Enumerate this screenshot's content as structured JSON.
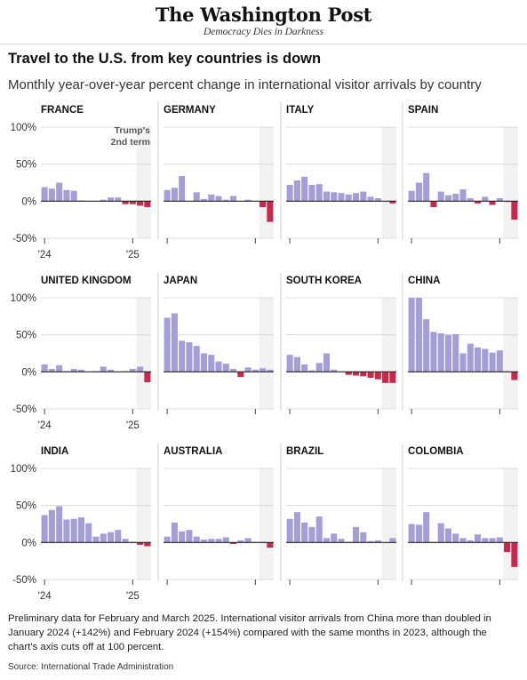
{
  "masthead": {
    "title": "The Washington Post",
    "tagline": "Democracy Dies in Darkness"
  },
  "headline": "Travel to the U.S. from key countries is down",
  "subhead": "Monthly year-over-year percent change in international visitor arrivals by country",
  "footnote": "Preliminary data for February and March 2025. International visitor arrivals from China more than doubled in January 2024 (+142%) and February 2024 (+154%) compared with the same months in 2023, although the chart's axis cuts off at 100 percent.",
  "source": "Source: International Trade Administration",
  "colors": {
    "positive": "#a49fd6",
    "negative": "#c8284c",
    "shade": "#f2f2f2",
    "baseline": "#222222",
    "grid": "#d4d4d4"
  },
  "chart_data": {
    "type": "bar",
    "months": [
      "Jan 2024",
      "Feb 2024",
      "Mar 2024",
      "Apr 2024",
      "May 2024",
      "Jun 2024",
      "Jul 2024",
      "Aug 2024",
      "Sep 2024",
      "Oct 2024",
      "Nov 2024",
      "Dec 2024",
      "Jan 2025",
      "Feb 2025",
      "Mar 2025"
    ],
    "ylim": [
      -50,
      100
    ],
    "y_ticks": [
      "100%",
      "50%",
      "0%",
      "-50%"
    ],
    "x_ticks": [
      "'24",
      "'25"
    ],
    "annotation": [
      "Trump's",
      "2nd term"
    ],
    "shaded_period": [
      "Feb 2025",
      "Mar 2025"
    ],
    "panels": [
      {
        "name": "FRANCE",
        "values": [
          19,
          17,
          25,
          15,
          14,
          1,
          0,
          0,
          2,
          5,
          5,
          -4,
          -4,
          -6,
          -8
        ]
      },
      {
        "name": "GERMANY",
        "values": [
          15,
          18,
          34,
          0,
          12,
          3,
          9,
          7,
          2,
          7,
          0,
          2,
          0,
          -8,
          -28
        ]
      },
      {
        "name": "ITALY",
        "values": [
          22,
          28,
          33,
          22,
          23,
          13,
          12,
          11,
          9,
          11,
          13,
          6,
          4,
          0,
          -3
        ]
      },
      {
        "name": "SPAIN",
        "values": [
          14,
          25,
          38,
          -8,
          13,
          8,
          10,
          16,
          4,
          -3,
          6,
          -5,
          4,
          -1,
          -25
        ]
      },
      {
        "name": "UNITED KINGDOM",
        "values": [
          10,
          4,
          9,
          1,
          4,
          3,
          0,
          1,
          7,
          3,
          0,
          1,
          4,
          7,
          -14
        ]
      },
      {
        "name": "JAPAN",
        "values": [
          73,
          79,
          42,
          40,
          35,
          25,
          23,
          14,
          11,
          4,
          -7,
          6,
          3,
          5,
          3
        ]
      },
      {
        "name": "SOUTH KOREA",
        "values": [
          23,
          20,
          10,
          2,
          12,
          25,
          3,
          0,
          -4,
          -5,
          -6,
          -8,
          -10,
          -15,
          -15
        ]
      },
      {
        "name": "CHINA",
        "values": [
          100,
          100,
          71,
          54,
          52,
          50,
          51,
          25,
          38,
          33,
          31,
          26,
          29,
          1,
          -11
        ]
      },
      {
        "name": "INDIA",
        "values": [
          37,
          44,
          49,
          31,
          32,
          34,
          26,
          8,
          12,
          14,
          17,
          5,
          1,
          -3,
          -5
        ]
      },
      {
        "name": "AUSTRALIA",
        "values": [
          8,
          27,
          15,
          17,
          8,
          4,
          5,
          5,
          7,
          -2,
          3,
          6,
          1,
          1,
          -7
        ]
      },
      {
        "name": "BRAZIL",
        "values": [
          32,
          41,
          27,
          21,
          35,
          6,
          12,
          5,
          1,
          21,
          14,
          2,
          3,
          0,
          6
        ]
      },
      {
        "name": "COLOMBIA",
        "values": [
          25,
          24,
          41,
          1,
          26,
          19,
          12,
          6,
          3,
          11,
          6,
          6,
          7,
          -13,
          -33
        ]
      }
    ]
  }
}
